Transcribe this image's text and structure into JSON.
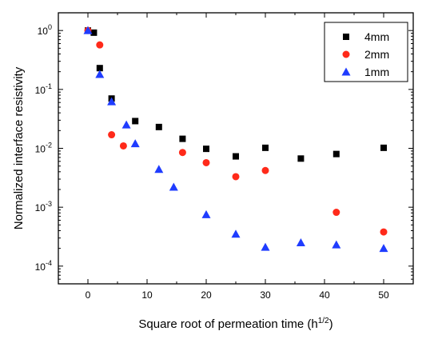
{
  "chart_data": {
    "type": "scatter",
    "xlabel": "Square root of permeation time (h",
    "xlabel_sup": "1/2",
    "xlabel_suffix": ")",
    "ylabel": "Normalized interface resistivity",
    "xlim": [
      -5,
      55
    ],
    "ylim": [
      5e-05,
      2
    ],
    "yscale": "log",
    "x_ticks": [
      0,
      10,
      20,
      30,
      40,
      50
    ],
    "x_tick_labels": [
      "0",
      "10",
      "20",
      "30",
      "40",
      "50"
    ],
    "y_ticks": [
      1,
      0.1,
      0.01,
      0.001,
      0.0001
    ],
    "y_tick_labels": [
      {
        "base": "10",
        "exp": "0"
      },
      {
        "base": "10",
        "exp": "-1"
      },
      {
        "base": "10",
        "exp": "-2"
      },
      {
        "base": "10",
        "exp": "-3"
      },
      {
        "base": "10",
        "exp": "-4"
      }
    ],
    "legend_position": "top-right",
    "series": [
      {
        "name": "4mm",
        "marker": "square",
        "color": "#000000",
        "points": [
          [
            0,
            1.0
          ],
          [
            1,
            0.92
          ],
          [
            2,
            0.23
          ],
          [
            4,
            0.07
          ],
          [
            8,
            0.029
          ],
          [
            12,
            0.023
          ],
          [
            16,
            0.0145
          ],
          [
            20,
            0.0098
          ],
          [
            25,
            0.0073
          ],
          [
            30,
            0.0102
          ],
          [
            36,
            0.0067
          ],
          [
            42,
            0.008
          ],
          [
            50,
            0.0102
          ]
        ]
      },
      {
        "name": "2mm",
        "marker": "circle",
        "color": "#ff2a1a",
        "points": [
          [
            0,
            1.0
          ],
          [
            2,
            0.57
          ],
          [
            4,
            0.017
          ],
          [
            6,
            0.011
          ],
          [
            16,
            0.0085
          ],
          [
            20,
            0.0057
          ],
          [
            25,
            0.0033
          ],
          [
            30,
            0.0042
          ],
          [
            42,
            0.00082
          ],
          [
            50,
            0.00038
          ]
        ]
      },
      {
        "name": "1mm",
        "marker": "triangle",
        "color": "#1f3cff",
        "points": [
          [
            0,
            1.0
          ],
          [
            2,
            0.18
          ],
          [
            4,
            0.062
          ],
          [
            6.5,
            0.025
          ],
          [
            8,
            0.012
          ],
          [
            12,
            0.0044
          ],
          [
            14.5,
            0.0022
          ],
          [
            20,
            0.00075
          ],
          [
            25,
            0.00035
          ],
          [
            30,
            0.00021
          ],
          [
            36,
            0.00025
          ],
          [
            42,
            0.00023
          ],
          [
            50,
            0.0002
          ]
        ]
      }
    ]
  }
}
